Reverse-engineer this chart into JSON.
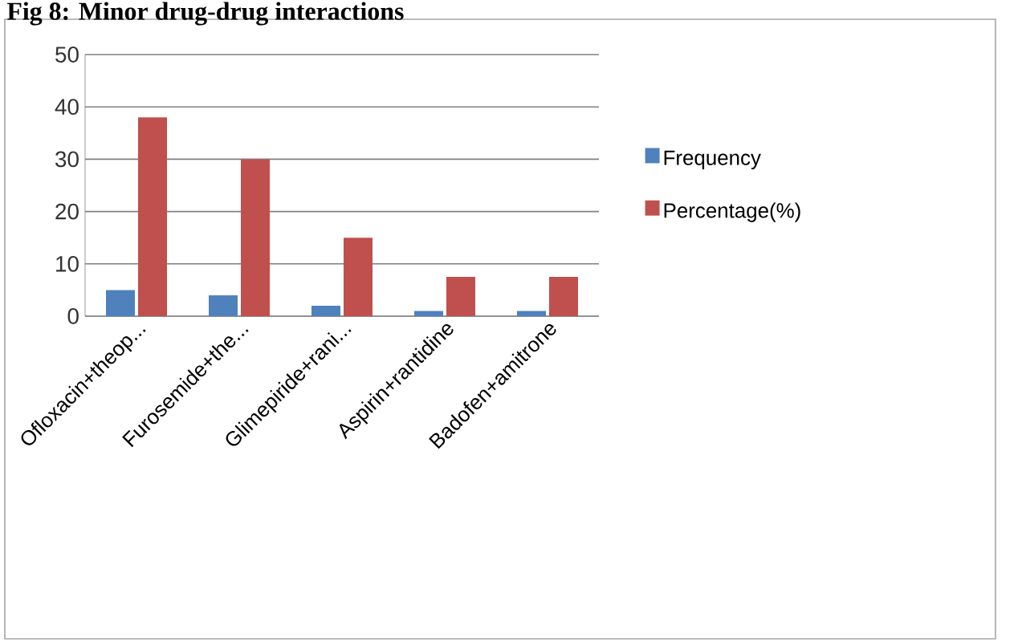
{
  "chart_data": {
    "type": "bar",
    "title": "Fig 8: Minor drug-drug interactions",
    "categories": [
      "Ofloxacin+theop...",
      "Furosemide+the...",
      "Glimepiride+rani...",
      "Aspirin+rantidine",
      "Badofen+amitrone"
    ],
    "series": [
      {
        "name": "Frequency",
        "color": "#4f81bd",
        "values": [
          5,
          4,
          2,
          1,
          1
        ]
      },
      {
        "name": "Percentage(%)",
        "color": "#c0504d",
        "values": [
          38,
          30,
          15,
          7.5,
          7.5
        ]
      }
    ],
    "ylim": [
      0,
      50
    ],
    "yticks": [
      0,
      10,
      20,
      30,
      40,
      50
    ],
    "grid": "y",
    "legend": "right"
  }
}
